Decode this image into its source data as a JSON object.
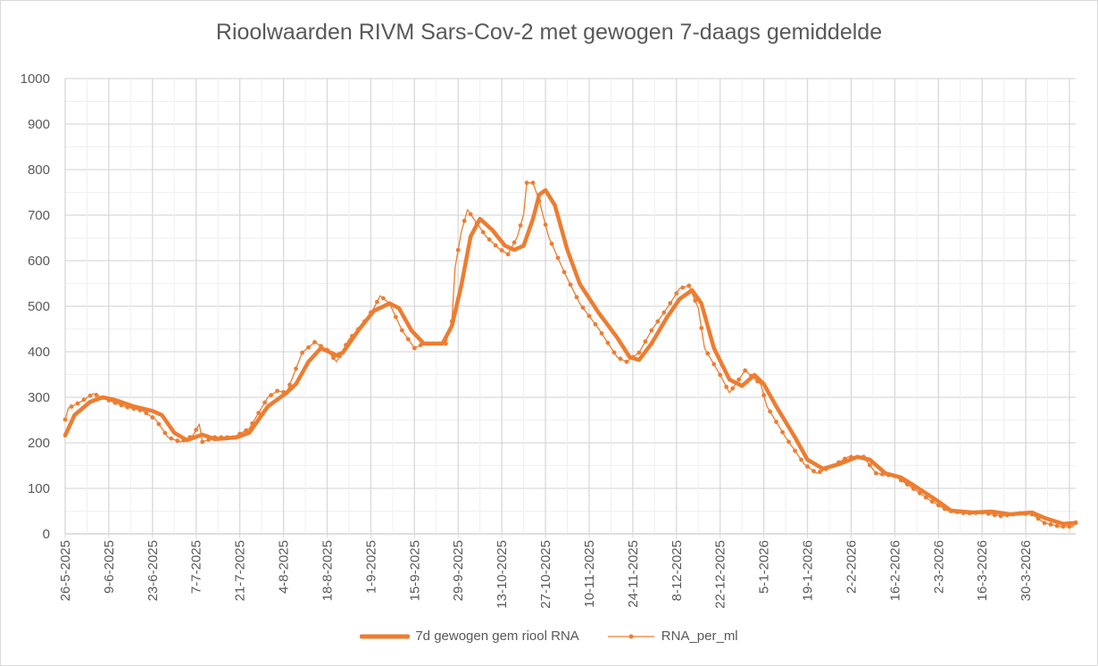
{
  "chart_data": {
    "type": "line",
    "title": "Rioolwaarden RIVM Sars-Cov-2 met gewogen 7-daags gemiddelde",
    "x_start_date": "26-5-2025",
    "x_unit": "days since 26-5-2025",
    "xlim": [
      0,
      324
    ],
    "ylim": [
      0,
      1000
    ],
    "y_ticks": [
      0,
      100,
      200,
      300,
      400,
      500,
      600,
      700,
      800,
      900,
      1000
    ],
    "x_tick_labels": [
      "26-5-2025",
      "9-6-2025",
      "23-6-2025",
      "7-7-2025",
      "21-7-2025",
      "4-8-2025",
      "18-8-2025",
      "1-9-2025",
      "15-9-2025",
      "29-9-2025",
      "13-10-2025",
      "27-10-2025",
      "10-11-2025",
      "24-11-2025",
      "8-12-2025",
      "22-12-2025",
      "5-1-2026",
      "19-1-2026",
      "2-2-2026",
      "16-2-2026",
      "2-3-2026",
      "16-3-2026",
      "30-3-2026"
    ],
    "x_tick_interval_days": 14,
    "grid": true,
    "legend_position": "bottom",
    "series": [
      {
        "name": "7d gewogen gem riool RNA",
        "color": "#ed7d31",
        "style": "thick-line",
        "points": [
          [
            0,
            216
          ],
          [
            3,
            261
          ],
          [
            8,
            290
          ],
          [
            12,
            300
          ],
          [
            16,
            294
          ],
          [
            22,
            280
          ],
          [
            28,
            270
          ],
          [
            31,
            261
          ],
          [
            35,
            222
          ],
          [
            39,
            206
          ],
          [
            44,
            218
          ],
          [
            48,
            208
          ],
          [
            55,
            212
          ],
          [
            59,
            222
          ],
          [
            65,
            280
          ],
          [
            71,
            310
          ],
          [
            74,
            329
          ],
          [
            78,
            378
          ],
          [
            82,
            408
          ],
          [
            87,
            392
          ],
          [
            89,
            398
          ],
          [
            94,
            447
          ],
          [
            99,
            490
          ],
          [
            104,
            506
          ],
          [
            107,
            496
          ],
          [
            111,
            447
          ],
          [
            115,
            418
          ],
          [
            121,
            418
          ],
          [
            124,
            457
          ],
          [
            127,
            545
          ],
          [
            130,
            653
          ],
          [
            133,
            692
          ],
          [
            137,
            667
          ],
          [
            141,
            633
          ],
          [
            144,
            624
          ],
          [
            147,
            633
          ],
          [
            150,
            692
          ],
          [
            152,
            745
          ],
          [
            154,
            755
          ],
          [
            157,
            722
          ],
          [
            161,
            624
          ],
          [
            165,
            549
          ],
          [
            171,
            486
          ],
          [
            177,
            431
          ],
          [
            181,
            388
          ],
          [
            184,
            382
          ],
          [
            188,
            418
          ],
          [
            193,
            476
          ],
          [
            197,
            516
          ],
          [
            201,
            535
          ],
          [
            204,
            506
          ],
          [
            208,
            408
          ],
          [
            213,
            339
          ],
          [
            217,
            325
          ],
          [
            221,
            349
          ],
          [
            224,
            329
          ],
          [
            228,
            280
          ],
          [
            234,
            212
          ],
          [
            238,
            163
          ],
          [
            243,
            143
          ],
          [
            248,
            153
          ],
          [
            254,
            169
          ],
          [
            258,
            163
          ],
          [
            263,
            133
          ],
          [
            268,
            124
          ],
          [
            274,
            98
          ],
          [
            280,
            71
          ],
          [
            284,
            51
          ],
          [
            291,
            47
          ],
          [
            297,
            49
          ],
          [
            303,
            43
          ],
          [
            310,
            47
          ],
          [
            314,
            35
          ],
          [
            320,
            22
          ],
          [
            324,
            24
          ]
        ]
      },
      {
        "name": "RNA_per_ml",
        "color": "#ed7d31",
        "style": "thin-line-markers",
        "points": [
          [
            0,
            251
          ],
          [
            1,
            276
          ],
          [
            5,
            290
          ],
          [
            9,
            308
          ],
          [
            13,
            296
          ],
          [
            19,
            280
          ],
          [
            25,
            270
          ],
          [
            29,
            251
          ],
          [
            33,
            212
          ],
          [
            37,
            202
          ],
          [
            41,
            216
          ],
          [
            43,
            241
          ],
          [
            44,
            202
          ],
          [
            48,
            212
          ],
          [
            54,
            212
          ],
          [
            59,
            231
          ],
          [
            65,
            300
          ],
          [
            68,
            314
          ],
          [
            71,
            310
          ],
          [
            76,
            398
          ],
          [
            80,
            421
          ],
          [
            84,
            404
          ],
          [
            87,
            378
          ],
          [
            91,
            427
          ],
          [
            95,
            457
          ],
          [
            99,
            496
          ],
          [
            101,
            523
          ],
          [
            104,
            506
          ],
          [
            108,
            447
          ],
          [
            112,
            408
          ],
          [
            115,
            418
          ],
          [
            122,
            418
          ],
          [
            124,
            467
          ],
          [
            125,
            584
          ],
          [
            127,
            663
          ],
          [
            129,
            712
          ],
          [
            131,
            692
          ],
          [
            135,
            653
          ],
          [
            139,
            627
          ],
          [
            142,
            614
          ],
          [
            145,
            653
          ],
          [
            147,
            702
          ],
          [
            148,
            771
          ],
          [
            150,
            771
          ],
          [
            152,
            731
          ],
          [
            155,
            653
          ],
          [
            160,
            575
          ],
          [
            165,
            506
          ],
          [
            171,
            451
          ],
          [
            177,
            388
          ],
          [
            180,
            378
          ],
          [
            184,
            398
          ],
          [
            188,
            447
          ],
          [
            193,
            496
          ],
          [
            197,
            539
          ],
          [
            200,
            545
          ],
          [
            203,
            496
          ],
          [
            205,
            408
          ],
          [
            210,
            349
          ],
          [
            213,
            310
          ],
          [
            215,
            329
          ],
          [
            218,
            359
          ],
          [
            223,
            329
          ],
          [
            225,
            280
          ],
          [
            231,
            212
          ],
          [
            237,
            153
          ],
          [
            241,
            133
          ],
          [
            246,
            149
          ],
          [
            251,
            169
          ],
          [
            256,
            169
          ],
          [
            260,
            133
          ],
          [
            266,
            127
          ],
          [
            271,
            104
          ],
          [
            277,
            75
          ],
          [
            283,
            51
          ],
          [
            289,
            45
          ],
          [
            294,
            47
          ],
          [
            300,
            39
          ],
          [
            306,
            45
          ],
          [
            310,
            43
          ],
          [
            314,
            24
          ],
          [
            319,
            16
          ],
          [
            323,
            16
          ],
          [
            324,
            25
          ]
        ]
      }
    ]
  }
}
